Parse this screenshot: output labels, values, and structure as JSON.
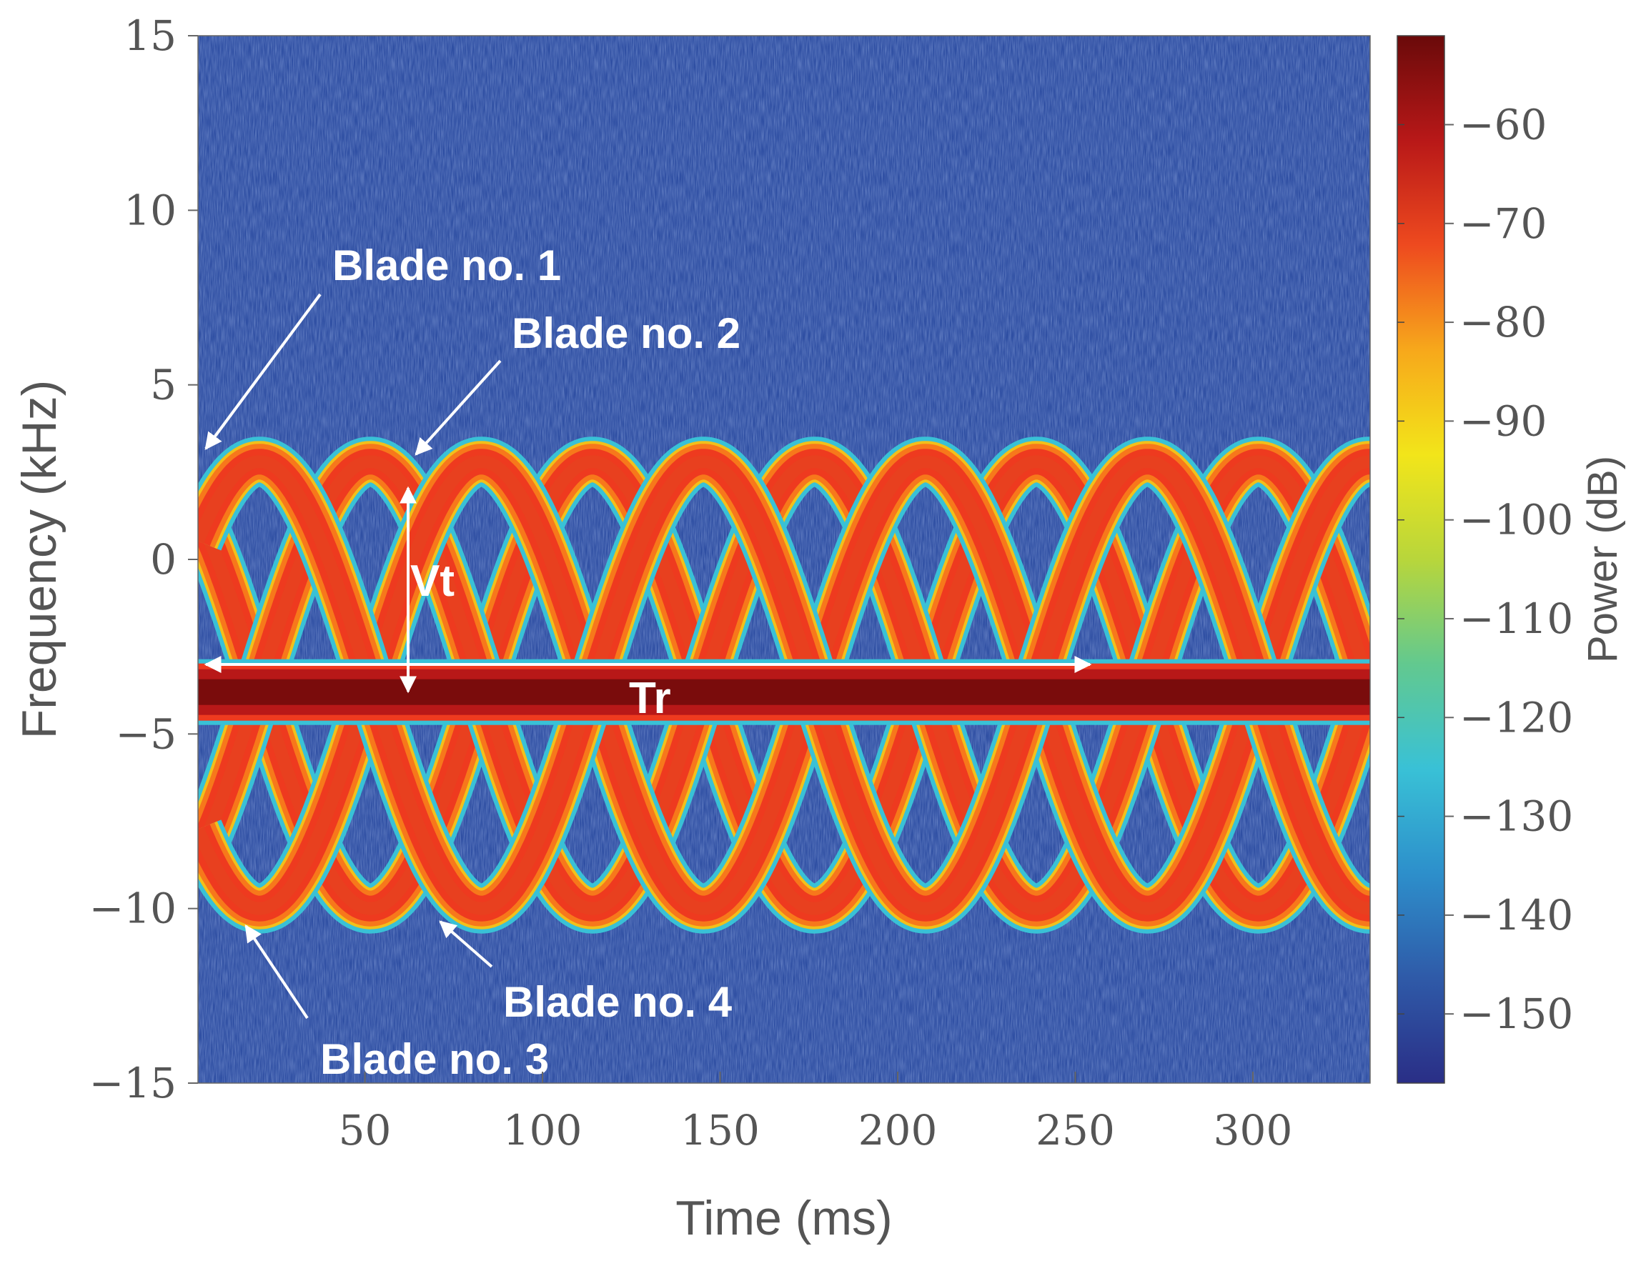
{
  "chart_data": {
    "type": "heatmap",
    "title": "",
    "xlabel": "Time (ms)",
    "ylabel": "Frequency (kHz)",
    "xlim": [
      3,
      333
    ],
    "ylim": [
      -15,
      15
    ],
    "xticks": [
      50,
      100,
      150,
      200,
      250,
      300
    ],
    "yticks": [
      -15,
      -10,
      -5,
      0,
      5,
      10,
      15
    ],
    "ytick_labels": [
      "−15",
      "−10",
      "−5",
      "0",
      "5",
      "10",
      "15"
    ],
    "colorbar": {
      "label": "Power (dB)",
      "range": [
        -157,
        -51
      ],
      "ticks": [
        -60,
        -70,
        -80,
        -90,
        -100,
        -110,
        -120,
        -130,
        -140,
        -150
      ],
      "tick_labels": [
        "−60",
        "−70",
        "−80",
        "−90",
        "−100",
        "−110",
        "−120",
        "−130",
        "−140",
        "−150"
      ],
      "colormap": "parula-jet"
    },
    "signal": {
      "body_line_freq_khz": -3.8,
      "blade_center_freq_khz": -3.6,
      "blade_amplitude_khz": 6.4,
      "rotation_period_ms": 125,
      "blade_phase_offsets_deg": [
        0,
        180,
        90,
        270
      ],
      "blade_peak_power_db": -75,
      "body_line_power_db": -55,
      "noise_floor_db": -148
    },
    "annotations": [
      {
        "label": "Blade no. 1"
      },
      {
        "label": "Blade no. 2"
      },
      {
        "label": "Blade no. 3"
      },
      {
        "label": "Blade no. 4"
      },
      {
        "label": "Vt"
      },
      {
        "label": "Tr"
      }
    ]
  },
  "colors": {
    "noise_background": "#2f4fa3",
    "colormap_stops": [
      "#2a2e86",
      "#2f5aa8",
      "#2d8fcb",
      "#39c1d6",
      "#62c98f",
      "#b8d63b",
      "#f2e51a",
      "#f7a81b",
      "#ee4a1f",
      "#b81818",
      "#6a0a0a"
    ],
    "annotation": "#ffffff",
    "axis": "#555555"
  }
}
